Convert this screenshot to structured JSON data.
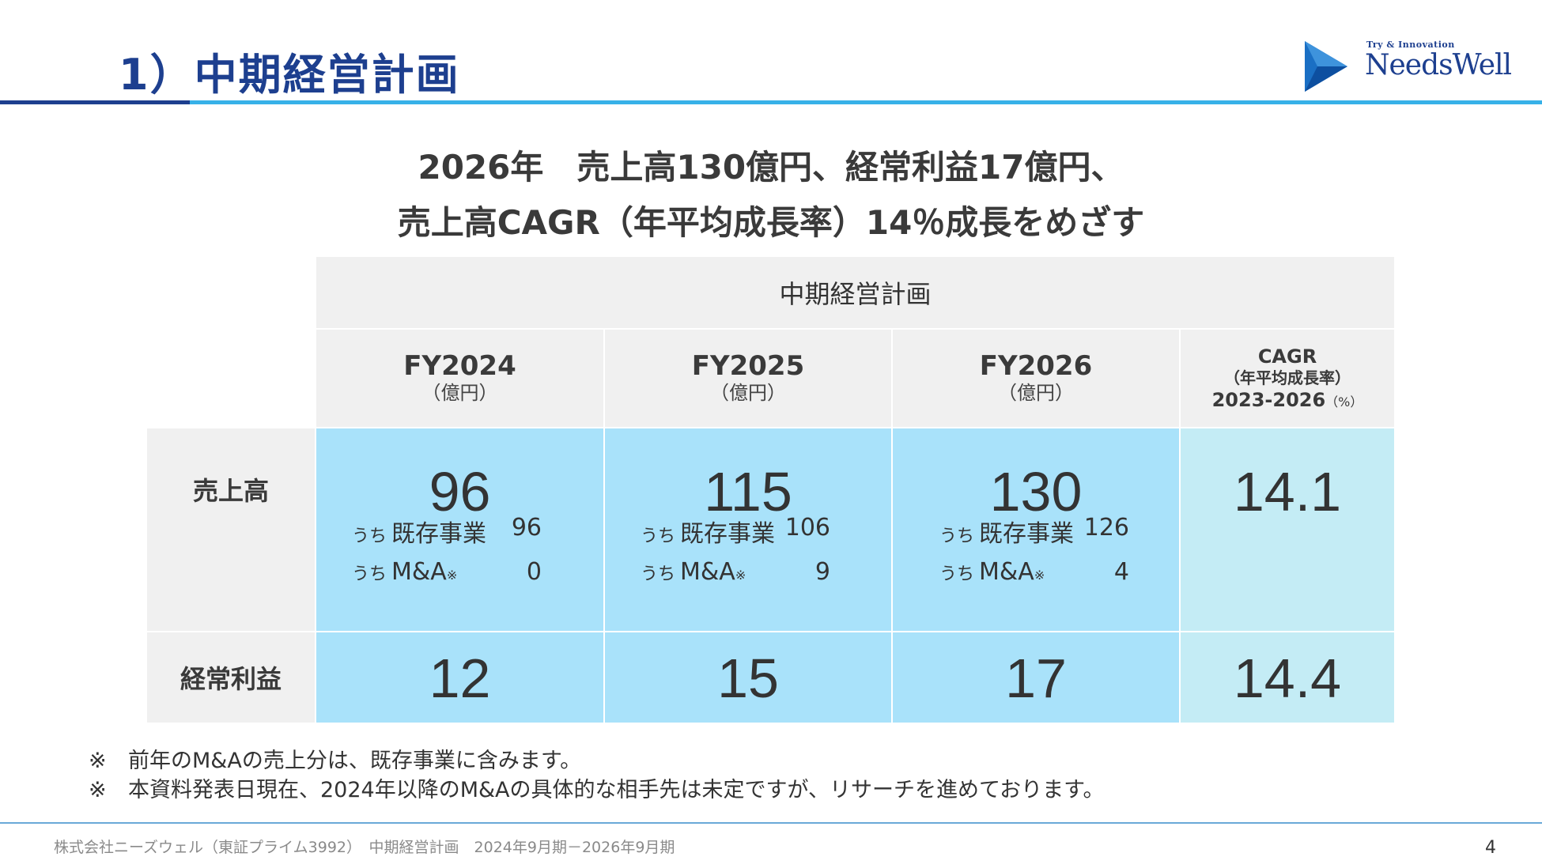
{
  "header": {
    "title": "1）中期経営計画",
    "logo": {
      "tagline": "Try & Innovation",
      "name": "NeedsWell",
      "mark_color": "#1a6fc4"
    }
  },
  "headline": {
    "line1": "2026年　売上高130億円、経常利益17億円、",
    "line2": "売上高CAGR（年平均成長率）14％成長をめざす"
  },
  "table": {
    "band_title": "中期経営計画",
    "columns": [
      {
        "label": "FY2024",
        "unit": "（億円）"
      },
      {
        "label": "FY2025",
        "unit": "（億円）"
      },
      {
        "label": "FY2026",
        "unit": "（億円）"
      }
    ],
    "cagr_column": {
      "label": "CAGR",
      "sub": "（年平均成長率）",
      "period": "2023-2026",
      "unit": "（%）"
    },
    "rows": {
      "sales": {
        "label": "売上高",
        "values": [
          "96",
          "115",
          "130"
        ],
        "cagr": "14.1",
        "existing_prefix": "うち",
        "existing_label": "既存事業",
        "existing_values": [
          "96",
          "106",
          "126"
        ],
        "ma_prefix": "うち",
        "ma_label": "M&A",
        "ma_mark": "※",
        "ma_values": [
          "0",
          "9",
          "4"
        ]
      },
      "profit": {
        "label": "経常利益",
        "values": [
          "12",
          "15",
          "17"
        ],
        "cagr": "14.4"
      }
    },
    "colors": {
      "header_bg": "#f0f0f0",
      "value_bg": "#a9e2fa",
      "cagr_bg": "#c4ecf5"
    }
  },
  "notes": [
    {
      "mark": "※",
      "text": "前年のM&Aの売上分は、既存事業に含みます。"
    },
    {
      "mark": "※",
      "text": "本資料発表日現在、2024年以降のM&Aの具体的な相手先は未定ですが、リサーチを進めております。"
    }
  ],
  "footer": {
    "text": "株式会社ニーズウェル（東証プライム3992）　中期経営計画　2024年9月期－2026年9月期",
    "page_number": "4"
  },
  "colors": {
    "title": "#1d3f8f",
    "accent_rule": "#37b1e8",
    "footer_rule": "#6aa9d8"
  }
}
